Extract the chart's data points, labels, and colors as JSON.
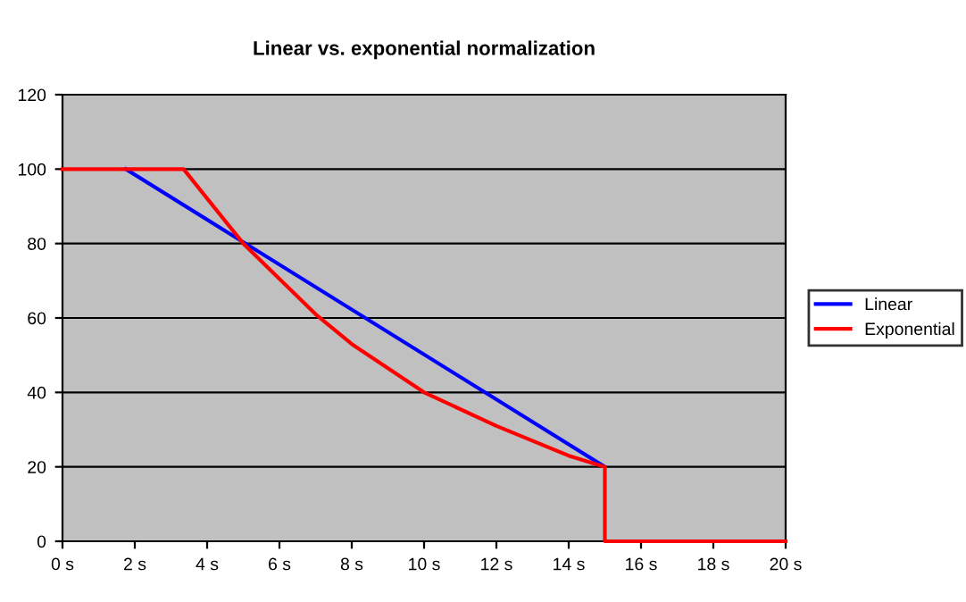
{
  "chart_data": {
    "type": "line",
    "title": "Linear vs. exponential normalization",
    "series": [
      {
        "name": "Linear",
        "color": "#0000ff",
        "x": [
          1.75,
          15
        ],
        "values": [
          100,
          20
        ]
      },
      {
        "name": "Exponential",
        "color": "#ff0000",
        "x": [
          0,
          3.35,
          5,
          7,
          8,
          10,
          12,
          14,
          15,
          15,
          20
        ],
        "values": [
          100,
          100,
          80,
          61,
          53,
          40,
          31,
          23,
          20,
          0,
          0
        ]
      }
    ],
    "xlim": [
      0,
      20
    ],
    "xticks": [
      {
        "value": 0,
        "label": "0 s"
      },
      {
        "value": 2,
        "label": "2 s"
      },
      {
        "value": 4,
        "label": "4 s"
      },
      {
        "value": 6,
        "label": "6 s"
      },
      {
        "value": 8,
        "label": "8 s"
      },
      {
        "value": 10,
        "label": "10 s"
      },
      {
        "value": 12,
        "label": "12 s"
      },
      {
        "value": 14,
        "label": "14 s"
      },
      {
        "value": 16,
        "label": "16 s"
      },
      {
        "value": 18,
        "label": "18 s"
      },
      {
        "value": 20,
        "label": "20 s"
      }
    ],
    "ylim": [
      0,
      120
    ],
    "yticks": [
      0,
      20,
      40,
      60,
      80,
      100,
      120
    ],
    "grid": "y",
    "legend": "right",
    "marker": "none",
    "line_style": "solid"
  }
}
